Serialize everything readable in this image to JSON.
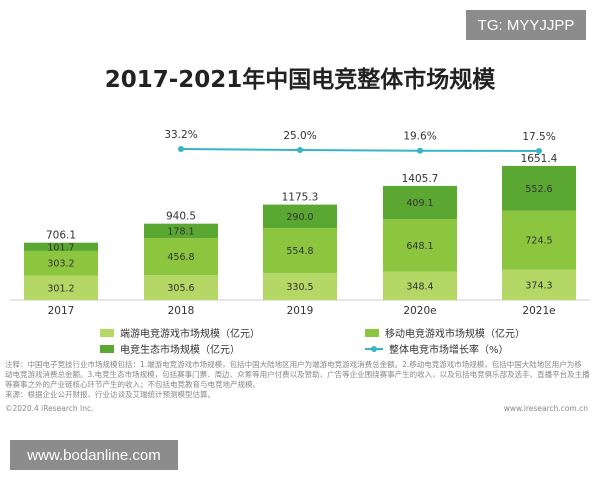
{
  "watermark_top": "TG: MYYJJPP",
  "watermark_bottom": "www.bodanline.com",
  "chart_data": {
    "type": "bar",
    "stacked": true,
    "title": "2017-2021年中国电竞整体市场规模",
    "categories": [
      "2017",
      "2018",
      "2019",
      "2020e",
      "2021e"
    ],
    "series": [
      {
        "name": "端游电竞游戏市场规模（亿元）",
        "values": [
          301.2,
          305.6,
          330.5,
          348.4,
          374.3
        ],
        "color": "#b5d766"
      },
      {
        "name": "移动电竞游戏市场规模（亿元）",
        "values": [
          303.2,
          456.8,
          554.8,
          648.1,
          724.5
        ],
        "color": "#8cc63f"
      },
      {
        "name": "电竞生态市场规模（亿元）",
        "values": [
          101.7,
          178.1,
          290.0,
          409.1,
          552.6
        ],
        "color": "#5aa832"
      }
    ],
    "totals": [
      "706.1",
      "940.5",
      "1175.3",
      "1405.7",
      "1651.4"
    ],
    "growth_series": {
      "name": "整体电竞市场增长率（%）",
      "x": [
        "2018",
        "2019",
        "2020e",
        "2021e"
      ],
      "values": [
        33.2,
        25.0,
        19.6,
        17.5
      ],
      "labels": [
        "33.2%",
        "25.0%",
        "19.6%",
        "17.5%"
      ],
      "color": "#39b3c6"
    },
    "legend_position": "bottom",
    "grid": false
  },
  "footnote": {
    "line1": "注释：中国电子竞技行业市场规模包括：1.端游电竞游戏市场规模，包括中国大陆地区用户为端游电竞游戏消费总金额。2.移动电竞游戏市场规模，包括中国大陆地区用户为移",
    "line2": "动电竞游戏消费总金额。3.电竞生态市场规模，包括赛事门票、周边、众筹等用户付费以及赞助、广告等企业围绕赛事产生的收入，以及包括电竞俱乐部及选手、直播平台及主播",
    "line3": "等赛事之外的产业链核心环节产生的收入；不包括电竞教育与电竞地产规模。",
    "line4": "来源：根据企业公开财报、行业访谈及艾瑞统计预测模型估算。"
  },
  "copyright": "©2020.4 iResearch Inc.",
  "website": "www.iresearch.com.cn"
}
